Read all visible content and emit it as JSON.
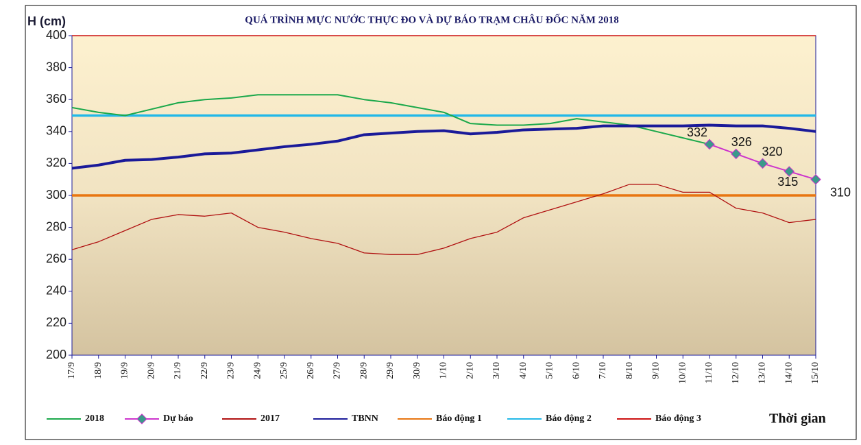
{
  "chart_data": {
    "type": "line",
    "title": "QUÁ TRÌNH MỰC NƯỚC THỰC ĐO VÀ DỰ BÁO TRẠM CHÂU ĐỐC NĂM 2018",
    "y_label": "H (cm)",
    "x_label": "Thời gian",
    "categories": [
      "17/9",
      "18/9",
      "19/9",
      "20/9",
      "21/9",
      "22/9",
      "23/9",
      "24/9",
      "25/9",
      "26/9",
      "27/9",
      "28/9",
      "29/9",
      "30/9",
      "1/10",
      "2/10",
      "3/10",
      "4/10",
      "5/10",
      "6/10",
      "7/10",
      "8/10",
      "9/10",
      "10/10",
      "11/10",
      "12/10",
      "13/10",
      "14/10",
      "15/10"
    ],
    "series": [
      {
        "name": "2018",
        "color": "#1aa84a",
        "values": [
          355,
          352,
          350,
          354,
          358,
          360,
          361,
          363,
          363,
          363,
          363,
          360,
          358,
          355,
          352,
          345,
          344,
          344,
          345,
          348,
          346,
          344,
          340,
          336,
          332,
          null,
          null,
          null,
          null
        ]
      },
      {
        "name": "Dự báo",
        "color": "#cc33cc",
        "marker_color": "#3a9a8a",
        "values": [
          null,
          null,
          null,
          null,
          null,
          null,
          null,
          null,
          null,
          null,
          null,
          null,
          null,
          null,
          null,
          null,
          null,
          null,
          null,
          null,
          null,
          null,
          null,
          null,
          332,
          326,
          320,
          315,
          310
        ]
      },
      {
        "name": "2017",
        "color": "#b01010",
        "values": [
          266,
          271,
          278,
          285,
          288,
          287,
          289,
          280,
          277,
          273,
          270,
          264,
          263,
          263,
          267,
          273,
          277,
          286,
          291,
          296,
          301,
          307,
          307,
          302,
          302,
          292,
          289,
          283,
          285
        ]
      },
      {
        "name": "TBNN",
        "color": "#1a1a99",
        "values": [
          317,
          319,
          322,
          322.5,
          324,
          326,
          326.5,
          328.5,
          330.5,
          332,
          334,
          338,
          339,
          340,
          340.5,
          338.5,
          339.5,
          341,
          341.5,
          342,
          343.5,
          343.5,
          343.5,
          343.5,
          344,
          343.5,
          343.5,
          342,
          340
        ]
      }
    ],
    "reference_lines": [
      {
        "name": "Báo động 1",
        "color": "#e87510",
        "value": 300
      },
      {
        "name": "Báo động 2",
        "color": "#22b8e8",
        "value": 350
      },
      {
        "name": "Báo động 3",
        "color": "#cc1010",
        "value": 400
      }
    ],
    "ylim": [
      200,
      400
    ],
    "yticks": [
      200,
      220,
      240,
      260,
      280,
      300,
      320,
      340,
      360,
      380,
      400
    ]
  }
}
